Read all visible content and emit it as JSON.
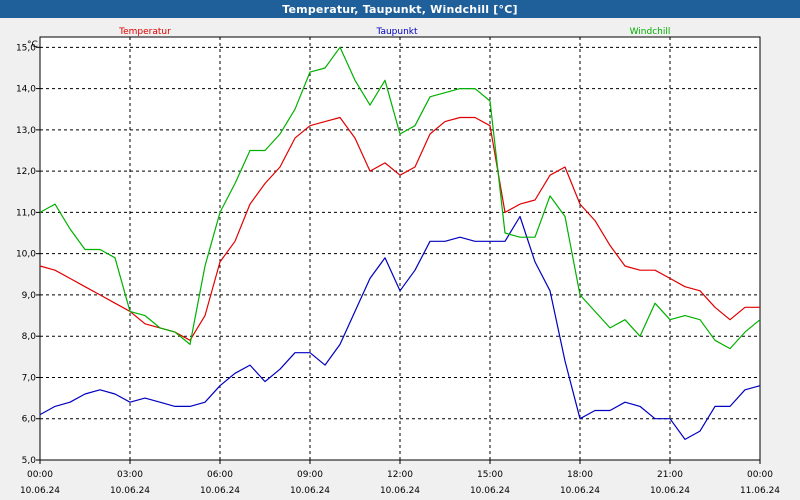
{
  "window": {
    "title": "Temperatur, Taupunkt, Windchill [°C]"
  },
  "chart_data": {
    "type": "line",
    "title": "Temperatur, Taupunkt, Windchill [°C]",
    "ylabel": "°C",
    "ylim": [
      5.0,
      15.25
    ],
    "xlim_hours": [
      0,
      24
    ],
    "y_ticks": [
      "5,0",
      "6,0",
      "7,0",
      "8,0",
      "9,0",
      "10,0",
      "11,0",
      "12,0",
      "13,0",
      "14,0",
      "15,0"
    ],
    "x_ticks": [
      {
        "time": "00:00",
        "date": "10.06.24"
      },
      {
        "time": "03:00",
        "date": "10.06.24"
      },
      {
        "time": "06:00",
        "date": "10.06.24"
      },
      {
        "time": "09:00",
        "date": "10.06.24"
      },
      {
        "time": "12:00",
        "date": "10.06.24"
      },
      {
        "time": "15:00",
        "date": "10.06.24"
      },
      {
        "time": "18:00",
        "date": "10.06.24"
      },
      {
        "time": "21:00",
        "date": "10.06.24"
      },
      {
        "time": "00:00",
        "date": "11.06.24"
      }
    ],
    "grid": true,
    "legend_placement": "top",
    "x_hours": [
      0,
      0.5,
      1,
      1.5,
      2,
      2.5,
      3,
      3.5,
      4,
      4.5,
      5,
      5.5,
      6,
      6.5,
      7,
      7.5,
      8,
      8.5,
      9,
      9.5,
      10,
      10.5,
      11,
      11.5,
      12,
      12.5,
      13,
      13.5,
      14,
      14.5,
      15,
      15.5,
      16,
      16.5,
      17,
      17.5,
      18,
      18.5,
      19,
      19.5,
      20,
      20.5,
      21,
      21.5,
      22,
      22.5,
      23,
      23.5,
      24
    ],
    "series": [
      {
        "name": "Temperatur",
        "color": "#e00000",
        "values": [
          9.7,
          9.6,
          9.4,
          9.2,
          9.0,
          8.8,
          8.6,
          8.3,
          8.2,
          8.1,
          7.9,
          8.5,
          9.8,
          10.3,
          11.2,
          11.7,
          12.1,
          12.8,
          13.1,
          13.2,
          13.3,
          12.8,
          12.0,
          12.2,
          11.9,
          12.1,
          12.9,
          13.2,
          13.3,
          13.3,
          13.1,
          11.0,
          11.2,
          11.3,
          11.9,
          12.1,
          11.2,
          10.8,
          10.2,
          9.7,
          9.6,
          9.6,
          9.4,
          9.2,
          9.1,
          8.7,
          8.4,
          8.7,
          8.7
        ],
        "marker_color": "#e00000"
      },
      {
        "name": "Taupunkt",
        "color": "#0000c0",
        "values": [
          6.1,
          6.3,
          6.4,
          6.6,
          6.7,
          6.6,
          6.4,
          6.5,
          6.4,
          6.3,
          6.3,
          6.4,
          6.8,
          7.1,
          7.3,
          6.9,
          7.2,
          7.6,
          7.6,
          7.3,
          7.8,
          8.6,
          9.4,
          9.9,
          9.1,
          9.6,
          10.3,
          10.3,
          10.4,
          10.3,
          10.3,
          10.3,
          10.9,
          9.8,
          9.1,
          7.4,
          6.0,
          6.2,
          6.2,
          6.4,
          6.3,
          6.0,
          6.0,
          5.5,
          5.7,
          6.3,
          6.3,
          6.7,
          6.8
        ],
        "marker_color": "#0000c0"
      },
      {
        "name": "Windchill",
        "color": "#00b000",
        "values": [
          11.0,
          11.2,
          10.6,
          10.1,
          10.1,
          9.9,
          8.6,
          8.5,
          8.2,
          8.1,
          7.8,
          9.7,
          11.0,
          11.7,
          12.5,
          12.5,
          12.9,
          13.5,
          14.4,
          14.5,
          15.0,
          14.2,
          13.6,
          14.2,
          12.9,
          13.1,
          13.8,
          13.9,
          14.0,
          14.0,
          13.7,
          10.5,
          10.4,
          10.4,
          11.4,
          10.9,
          9.0,
          8.6,
          8.2,
          8.4,
          8.0,
          8.8,
          8.4,
          8.5,
          8.4,
          7.9,
          7.7,
          8.1,
          8.4
        ],
        "marker_color": "#00b000"
      }
    ]
  }
}
